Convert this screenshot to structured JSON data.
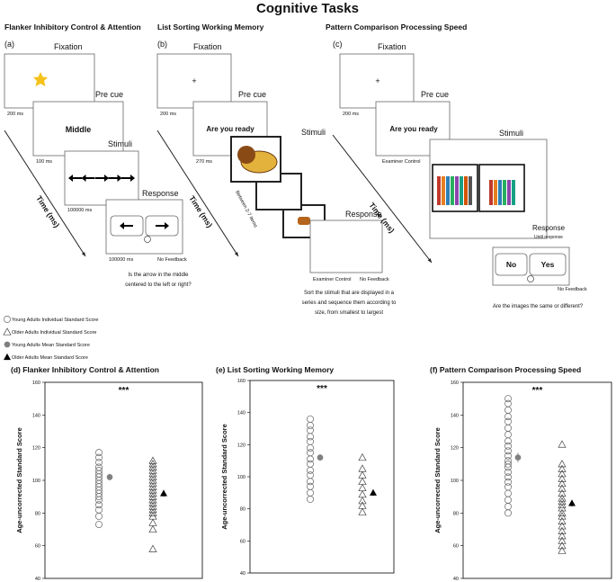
{
  "title": "Cognitive Tasks",
  "panels": [
    {
      "label": "(a)",
      "heading": "Flanker Inhibitory Control & Attention",
      "steps": [
        {
          "name": "Fixation",
          "duration": "200 ms"
        },
        {
          "name": "Pre cue",
          "content": "Middle",
          "duration": "100 ms"
        },
        {
          "name": "Stimuli",
          "duration": "100000 ms"
        },
        {
          "name": "Response",
          "duration": "100000 ms",
          "feedback": "No Feedback"
        }
      ],
      "axis": "Time (ms)",
      "caption": [
        "Is the arrow in the middle",
        "centered to the left or right?"
      ]
    },
    {
      "label": "(b)",
      "heading": "List Sorting Working Memory",
      "steps": [
        {
          "name": "Fixation",
          "content": "+",
          "duration": "200 ms"
        },
        {
          "name": "Pre cue",
          "content": "Are you ready",
          "duration": "270 ms"
        },
        {
          "name": "Stimuli",
          "note": "Between 2-7 items"
        },
        {
          "name": "Response",
          "duration": "Examiner Control",
          "feedback": "No Feedback"
        }
      ],
      "axis": "Time (ms)",
      "caption": [
        "Sort the stimuli that are displayed in a",
        "series and sequence them according to",
        "size, from smallest to largest"
      ]
    },
    {
      "label": "(c)",
      "heading": "Pattern Comparison Processing Speed",
      "steps": [
        {
          "name": "Fixation",
          "content": "+",
          "duration": "200 ms"
        },
        {
          "name": "Pre cue",
          "content": "Are you ready",
          "duration": "Examiner Control"
        },
        {
          "name": "Stimuli"
        },
        {
          "name": "Response",
          "note": "Until response",
          "buttons": [
            "No",
            "Yes"
          ],
          "feedback": "No Feedback"
        }
      ],
      "axis": "Time (ms)",
      "caption": [
        "Are the images the same or different?"
      ]
    }
  ],
  "legend": [
    "Young Adults Individual Standard Score",
    "Older Adults Individual Standard Score",
    "Young Adults Mean Standard Score",
    "Older Adults Mean Standard Score"
  ],
  "chart_data": [
    {
      "type": "scatter",
      "title": "(d) Flanker Inhibitory Control & Attention",
      "ylabel": "Age-uncorrected Standard Score",
      "annotation": "***",
      "ylim": [
        40,
        160
      ],
      "yticks": [
        40,
        60,
        80,
        100,
        120,
        140,
        160
      ],
      "series": [
        {
          "marker": "circle-open",
          "color": "#666666",
          "values": [
            117,
            114,
            111,
            108,
            106,
            104,
            102,
            100,
            98,
            96,
            94,
            92,
            90,
            88,
            85,
            82,
            78,
            73
          ]
        },
        {
          "marker": "triangle-open",
          "color": "#444444",
          "values": [
            112,
            110,
            108,
            106,
            104,
            102,
            100,
            98,
            96,
            94,
            92,
            90,
            88,
            86,
            84,
            82,
            80,
            78,
            74,
            70,
            58
          ]
        },
        {
          "marker": "circle-filled",
          "color": "#808080",
          "values": [
            102
          ],
          "errors": [
            2
          ]
        },
        {
          "marker": "triangle-filled",
          "color": "#000000",
          "values": [
            92
          ],
          "errors": [
            2
          ]
        }
      ]
    },
    {
      "type": "scatter",
      "title": "(e) List Sorting Working Memory",
      "ylabel": "Age-uncorrected Standard Score",
      "annotation": "***",
      "ylim": [
        40,
        160
      ],
      "yticks": [
        40,
        60,
        80,
        100,
        120,
        140,
        160
      ],
      "series": [
        {
          "marker": "circle-open",
          "color": "#666666",
          "values": [
            136,
            132,
            129,
            125,
            122,
            118,
            115,
            111,
            108,
            104,
            101,
            97,
            94,
            90,
            86
          ]
        },
        {
          "marker": "triangle-open",
          "color": "#444444",
          "values": [
            112,
            105,
            101,
            97,
            93,
            89,
            85,
            82,
            78
          ]
        },
        {
          "marker": "circle-filled",
          "color": "#808080",
          "values": [
            112
          ],
          "errors": [
            2
          ]
        },
        {
          "marker": "triangle-filled",
          "color": "#000000",
          "values": [
            90
          ],
          "errors": [
            2
          ]
        }
      ]
    },
    {
      "type": "scatter",
      "title": "(f) Pattern Comparison Processing Speed",
      "ylabel": "Age-uncorrected Standard Score",
      "annotation": "***",
      "ylim": [
        40,
        160
      ],
      "yticks": [
        40,
        60,
        80,
        100,
        120,
        140,
        160
      ],
      "series": [
        {
          "marker": "circle-open",
          "color": "#666666",
          "values": [
            150,
            147,
            143,
            139,
            136,
            132,
            128,
            124,
            121,
            118,
            115,
            112,
            110,
            108,
            105,
            102,
            99,
            96,
            92,
            88,
            84,
            80
          ]
        },
        {
          "marker": "triangle-open",
          "color": "#444444",
          "values": [
            122,
            110,
            107,
            104,
            101,
            98,
            95,
            92,
            89,
            87,
            85,
            83,
            80,
            78,
            75,
            72,
            69,
            66,
            63,
            60,
            57
          ]
        },
        {
          "marker": "circle-filled",
          "color": "#808080",
          "values": [
            114
          ],
          "errors": [
            3
          ]
        },
        {
          "marker": "triangle-filled",
          "color": "#000000",
          "values": [
            86
          ],
          "errors": [
            2
          ]
        }
      ]
    }
  ]
}
